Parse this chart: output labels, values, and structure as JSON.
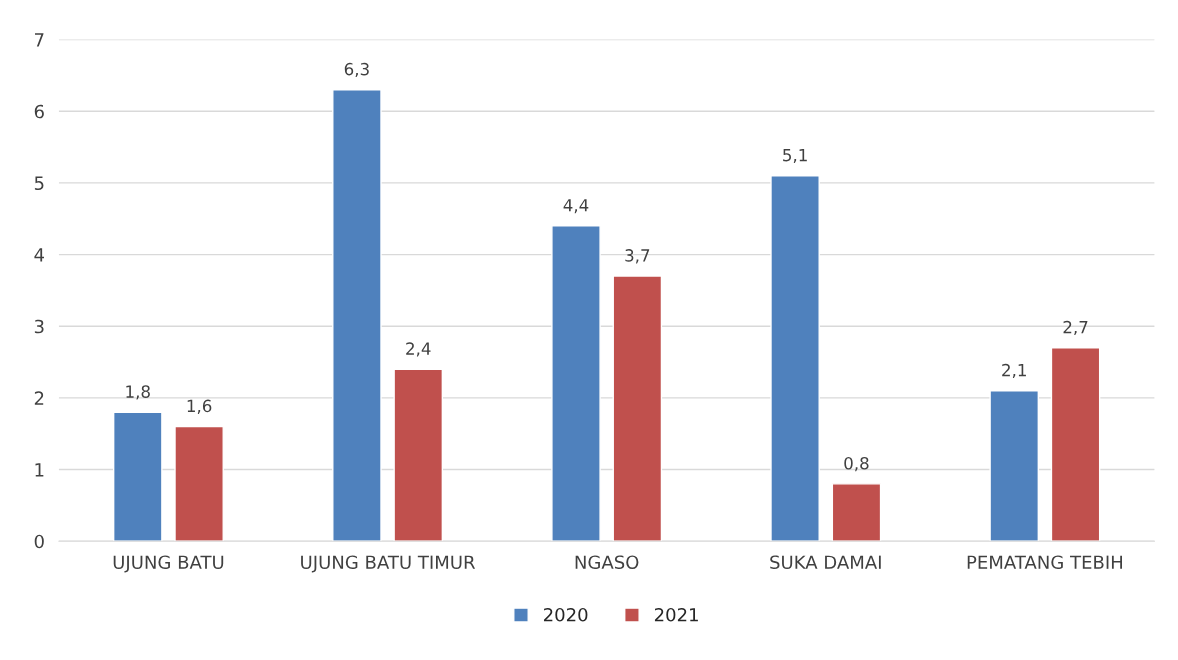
{
  "chart_data": {
    "type": "bar",
    "categories": [
      "UJUNG BATU",
      "UJUNG BATU TIMUR",
      "NGASO",
      "SUKA DAMAI",
      "PEMATANG TEBIH"
    ],
    "series": [
      {
        "name": "2020",
        "color": "#4f81bd",
        "values": [
          1.8,
          6.3,
          4.4,
          5.1,
          2.1
        ],
        "value_labels": [
          "1,8",
          "6,3",
          "4,4",
          "5,1",
          "2,1"
        ]
      },
      {
        "name": "2021",
        "color": "#c0504d",
        "values": [
          1.6,
          2.4,
          3.7,
          0.8,
          2.7
        ],
        "value_labels": [
          "1,6",
          "2,4",
          "3,7",
          "0,8",
          "2,7"
        ]
      }
    ],
    "ylim": [
      0,
      7
    ],
    "yticks": [
      0,
      1,
      2,
      3,
      4,
      5,
      6,
      7
    ],
    "grid": "y",
    "legend": "bottom"
  }
}
